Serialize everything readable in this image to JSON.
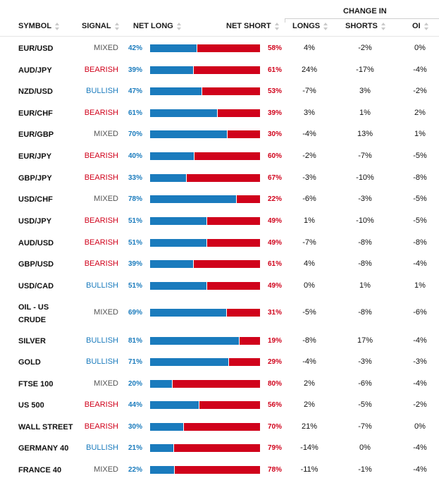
{
  "header": {
    "group_label": "CHANGE IN",
    "columns": {
      "symbol": "SYMBOL",
      "signal": "SIGNAL",
      "net_long": "NET LONG",
      "net_short": "NET SHORT",
      "longs": "LONGS",
      "shorts": "SHORTS",
      "oi": "OI"
    }
  },
  "colors": {
    "long": "#1a7bbd",
    "short": "#d0021b",
    "mixed": "#555555"
  },
  "rows": [
    {
      "symbol": "EUR/USD",
      "signal": "MIXED",
      "net_long": "42%",
      "net_short": "58%",
      "long_pct": 42,
      "longs": "4%",
      "shorts": "-2%",
      "oi": "0%"
    },
    {
      "symbol": "AUD/JPY",
      "signal": "BEARISH",
      "net_long": "39%",
      "net_short": "61%",
      "long_pct": 39,
      "longs": "24%",
      "shorts": "-17%",
      "oi": "-4%"
    },
    {
      "symbol": "NZD/USD",
      "signal": "BULLISH",
      "net_long": "47%",
      "net_short": "53%",
      "long_pct": 47,
      "longs": "-7%",
      "shorts": "3%",
      "oi": "-2%"
    },
    {
      "symbol": "EUR/CHF",
      "signal": "BEARISH",
      "net_long": "61%",
      "net_short": "39%",
      "long_pct": 61,
      "longs": "3%",
      "shorts": "1%",
      "oi": "2%"
    },
    {
      "symbol": "EUR/GBP",
      "signal": "MIXED",
      "net_long": "70%",
      "net_short": "30%",
      "long_pct": 70,
      "longs": "-4%",
      "shorts": "13%",
      "oi": "1%"
    },
    {
      "symbol": "EUR/JPY",
      "signal": "BEARISH",
      "net_long": "40%",
      "net_short": "60%",
      "long_pct": 40,
      "longs": "-2%",
      "shorts": "-7%",
      "oi": "-5%"
    },
    {
      "symbol": "GBP/JPY",
      "signal": "BEARISH",
      "net_long": "33%",
      "net_short": "67%",
      "long_pct": 33,
      "longs": "-3%",
      "shorts": "-10%",
      "oi": "-8%"
    },
    {
      "symbol": "USD/CHF",
      "signal": "MIXED",
      "net_long": "78%",
      "net_short": "22%",
      "long_pct": 78,
      "longs": "-6%",
      "shorts": "-3%",
      "oi": "-5%"
    },
    {
      "symbol": "USD/JPY",
      "signal": "BEARISH",
      "net_long": "51%",
      "net_short": "49%",
      "long_pct": 51,
      "longs": "1%",
      "shorts": "-10%",
      "oi": "-5%"
    },
    {
      "symbol": "AUD/USD",
      "signal": "BEARISH",
      "net_long": "51%",
      "net_short": "49%",
      "long_pct": 51,
      "longs": "-7%",
      "shorts": "-8%",
      "oi": "-8%"
    },
    {
      "symbol": "GBP/USD",
      "signal": "BEARISH",
      "net_long": "39%",
      "net_short": "61%",
      "long_pct": 39,
      "longs": "4%",
      "shorts": "-8%",
      "oi": "-4%"
    },
    {
      "symbol": "USD/CAD",
      "signal": "BULLISH",
      "net_long": "51%",
      "net_short": "49%",
      "long_pct": 51,
      "longs": "0%",
      "shorts": "1%",
      "oi": "1%"
    },
    {
      "symbol": "OIL - US CRUDE",
      "signal": "MIXED",
      "net_long": "69%",
      "net_short": "31%",
      "long_pct": 69,
      "longs": "-5%",
      "shorts": "-8%",
      "oi": "-6%"
    },
    {
      "symbol": "SILVER",
      "signal": "BULLISH",
      "net_long": "81%",
      "net_short": "19%",
      "long_pct": 81,
      "longs": "-8%",
      "shorts": "17%",
      "oi": "-4%"
    },
    {
      "symbol": "GOLD",
      "signal": "BULLISH",
      "net_long": "71%",
      "net_short": "29%",
      "long_pct": 71,
      "longs": "-4%",
      "shorts": "-3%",
      "oi": "-3%"
    },
    {
      "symbol": "FTSE 100",
      "signal": "MIXED",
      "net_long": "20%",
      "net_short": "80%",
      "long_pct": 20,
      "longs": "2%",
      "shorts": "-6%",
      "oi": "-4%"
    },
    {
      "symbol": "US 500",
      "signal": "BEARISH",
      "net_long": "44%",
      "net_short": "56%",
      "long_pct": 44,
      "longs": "2%",
      "shorts": "-5%",
      "oi": "-2%"
    },
    {
      "symbol": "WALL STREET",
      "signal": "BEARISH",
      "net_long": "30%",
      "net_short": "70%",
      "long_pct": 30,
      "longs": "21%",
      "shorts": "-7%",
      "oi": "0%"
    },
    {
      "symbol": "GERMANY 40",
      "signal": "BULLISH",
      "net_long": "21%",
      "net_short": "79%",
      "long_pct": 21,
      "longs": "-14%",
      "shorts": "0%",
      "oi": "-4%"
    },
    {
      "symbol": "FRANCE 40",
      "signal": "MIXED",
      "net_long": "22%",
      "net_short": "78%",
      "long_pct": 22,
      "longs": "-11%",
      "shorts": "-1%",
      "oi": "-4%"
    }
  ]
}
